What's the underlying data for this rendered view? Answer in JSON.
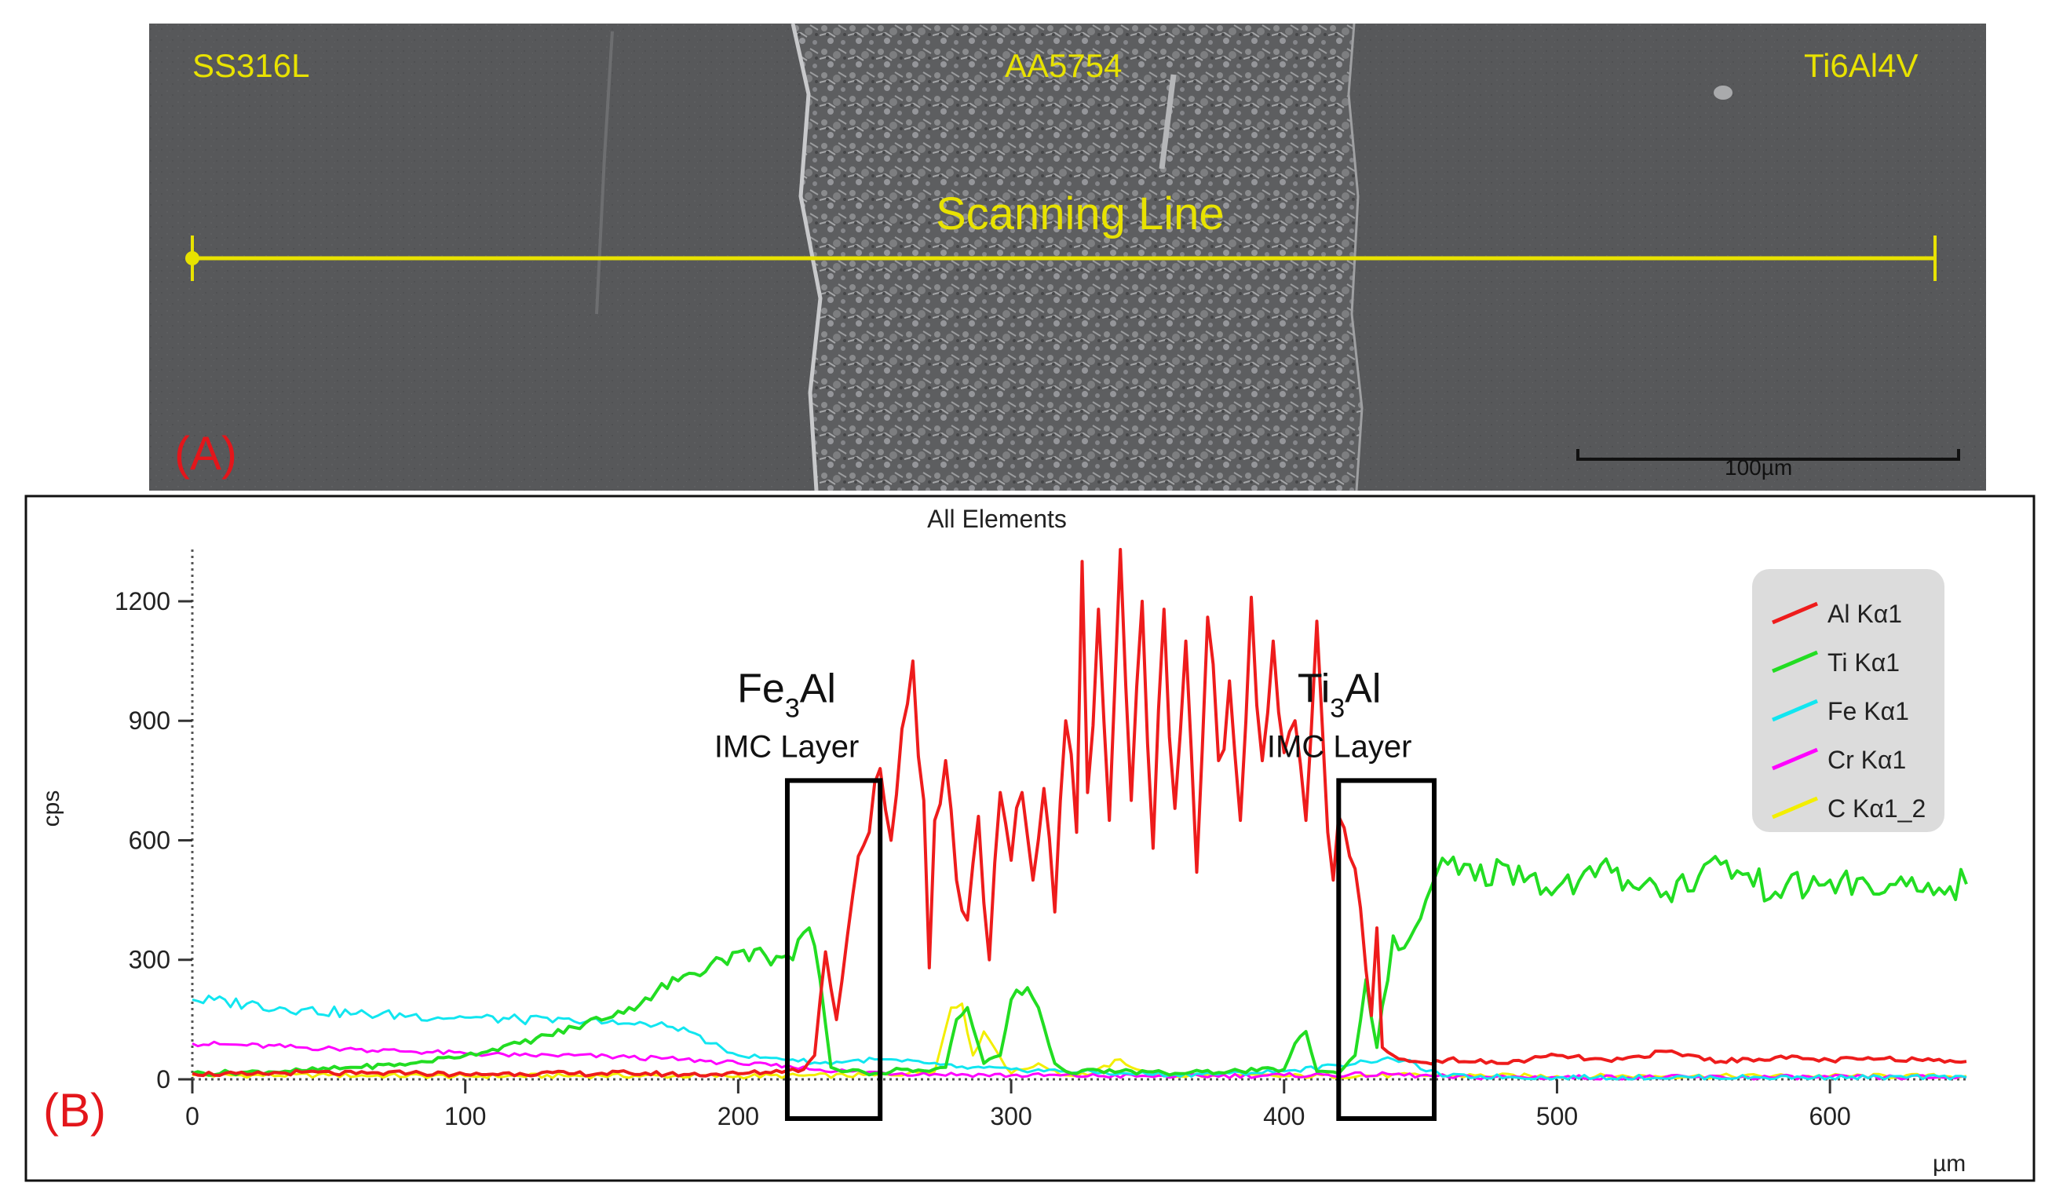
{
  "panel_a": {
    "label": "(A)",
    "material_left": "SS316L",
    "material_center": "AA5754",
    "material_right": "Ti6Al4V",
    "scan_line_label": "Scanning Line",
    "scale_bar_label": "100µm",
    "scale_bar_um": 100
  },
  "panel_b": {
    "label": "(B)"
  },
  "colors": {
    "al": "#ee1c1c",
    "ti": "#22dd22",
    "fe": "#11e6f0",
    "cr": "#ff00ff",
    "c": "#f3ee00",
    "sem_annotation": "#e8e200",
    "panel_label": "#e3161b"
  },
  "chart_data": {
    "type": "line",
    "title": "All Elements",
    "xlabel": "µm",
    "ylabel": "cps",
    "xlim": [
      0,
      650
    ],
    "ylim": [
      0,
      1330
    ],
    "x_ticks": [
      0,
      100,
      200,
      300,
      400,
      500,
      600
    ],
    "y_ticks": [
      0,
      300,
      600,
      900,
      1200
    ],
    "legend_position": "top-right",
    "series": [
      {
        "name": "Al Kα1",
        "key": "al",
        "x": [
          0,
          20,
          40,
          60,
          80,
          100,
          120,
          140,
          160,
          180,
          200,
          210,
          218,
          224,
          228,
          232,
          236,
          240,
          244,
          248,
          252,
          256,
          260,
          264,
          268,
          270,
          272,
          276,
          280,
          284,
          288,
          292,
          296,
          300,
          304,
          308,
          312,
          316,
          320,
          324,
          326,
          328,
          332,
          336,
          340,
          344,
          348,
          352,
          356,
          360,
          364,
          368,
          372,
          376,
          380,
          384,
          388,
          392,
          396,
          400,
          404,
          408,
          412,
          416,
          418,
          420,
          424,
          428,
          432,
          434,
          436,
          440,
          444,
          448,
          452,
          460,
          480,
          500,
          520,
          540,
          560,
          580,
          600,
          620,
          640,
          650
        ],
        "values": [
          15,
          12,
          18,
          14,
          16,
          12,
          15,
          14,
          16,
          12,
          14,
          18,
          22,
          25,
          60,
          320,
          150,
          360,
          560,
          620,
          780,
          600,
          880,
          1050,
          700,
          280,
          650,
          800,
          500,
          400,
          660,
          300,
          720,
          550,
          720,
          500,
          730,
          420,
          900,
          620,
          1300,
          720,
          1180,
          650,
          1330,
          700,
          1200,
          580,
          1180,
          680,
          1100,
          520,
          1160,
          800,
          1000,
          650,
          1210,
          800,
          1100,
          820,
          900,
          650,
          1150,
          620,
          500,
          660,
          560,
          430,
          160,
          380,
          80,
          60,
          50,
          45,
          42,
          50,
          40,
          60,
          45,
          70,
          45,
          55,
          48,
          52,
          50,
          45
        ],
        "description": "line profile"
      },
      {
        "name": "Ti Kα1",
        "key": "ti",
        "x": [
          0,
          20,
          40,
          60,
          80,
          100,
          120,
          140,
          160,
          170,
          180,
          190,
          200,
          210,
          220,
          226,
          230,
          234,
          240,
          250,
          260,
          270,
          276,
          280,
          284,
          290,
          296,
          300,
          306,
          310,
          316,
          320,
          340,
          360,
          380,
          400,
          404,
          408,
          412,
          420,
          426,
          430,
          434,
          440,
          444,
          448,
          452,
          456,
          460,
          470,
          480,
          490,
          500,
          520,
          540,
          560,
          580,
          600,
          620,
          640,
          650
        ],
        "values": [
          15,
          18,
          22,
          30,
          40,
          60,
          90,
          130,
          180,
          220,
          260,
          290,
          320,
          310,
          300,
          380,
          250,
          30,
          20,
          15,
          25,
          20,
          30,
          150,
          180,
          40,
          60,
          200,
          230,
          180,
          40,
          20,
          20,
          15,
          20,
          25,
          90,
          120,
          20,
          15,
          60,
          250,
          80,
          360,
          330,
          380,
          450,
          520,
          540,
          500,
          540,
          510,
          480,
          520,
          470,
          540,
          470,
          500,
          470,
          480,
          490
        ],
        "description": "line profile"
      },
      {
        "name": "Fe Kα1",
        "key": "fe",
        "x": [
          0,
          20,
          40,
          60,
          80,
          100,
          120,
          140,
          160,
          180,
          190,
          200,
          210,
          220,
          230,
          240,
          250,
          260,
          270,
          280,
          300,
          320,
          340,
          360,
          380,
          400,
          420,
          430,
          440,
          448,
          452,
          460,
          500,
          550,
          600,
          650
        ],
        "values": [
          200,
          190,
          175,
          165,
          160,
          155,
          150,
          145,
          140,
          130,
          90,
          60,
          55,
          50,
          40,
          45,
          50,
          45,
          40,
          30,
          25,
          20,
          15,
          12,
          15,
          20,
          35,
          45,
          50,
          40,
          20,
          8,
          5,
          5,
          5,
          5
        ],
        "description": "line profile"
      },
      {
        "name": "Cr Kα1",
        "key": "cr",
        "x": [
          0,
          20,
          40,
          60,
          80,
          100,
          120,
          140,
          160,
          180,
          200,
          220,
          240,
          260,
          300,
          350,
          400,
          440,
          460,
          500,
          550,
          600,
          650
        ],
        "values": [
          90,
          85,
          80,
          75,
          70,
          65,
          60,
          60,
          55,
          50,
          40,
          30,
          20,
          15,
          10,
          8,
          10,
          12,
          6,
          5,
          5,
          5,
          5
        ],
        "description": "line profile"
      },
      {
        "name": "C Kα1_2",
        "key": "c",
        "x": [
          0,
          50,
          100,
          150,
          200,
          250,
          272,
          278,
          282,
          286,
          290,
          300,
          310,
          320,
          330,
          340,
          350,
          400,
          450,
          500,
          550,
          600,
          650
        ],
        "values": [
          10,
          10,
          8,
          9,
          8,
          10,
          20,
          180,
          190,
          60,
          120,
          15,
          40,
          10,
          15,
          50,
          10,
          8,
          10,
          8,
          8,
          8,
          8
        ],
        "description": "line profile"
      }
    ],
    "annotations": [
      {
        "compound_base": "Fe",
        "subscript": "3",
        "compound_rest": "Al",
        "text": "IMC Layer",
        "x_from": 218,
        "x_to": 252
      },
      {
        "compound_base": "Ti",
        "subscript": "3",
        "compound_rest": "Al",
        "text": "IMC Layer",
        "x_from": 420,
        "x_to": 455
      }
    ]
  }
}
